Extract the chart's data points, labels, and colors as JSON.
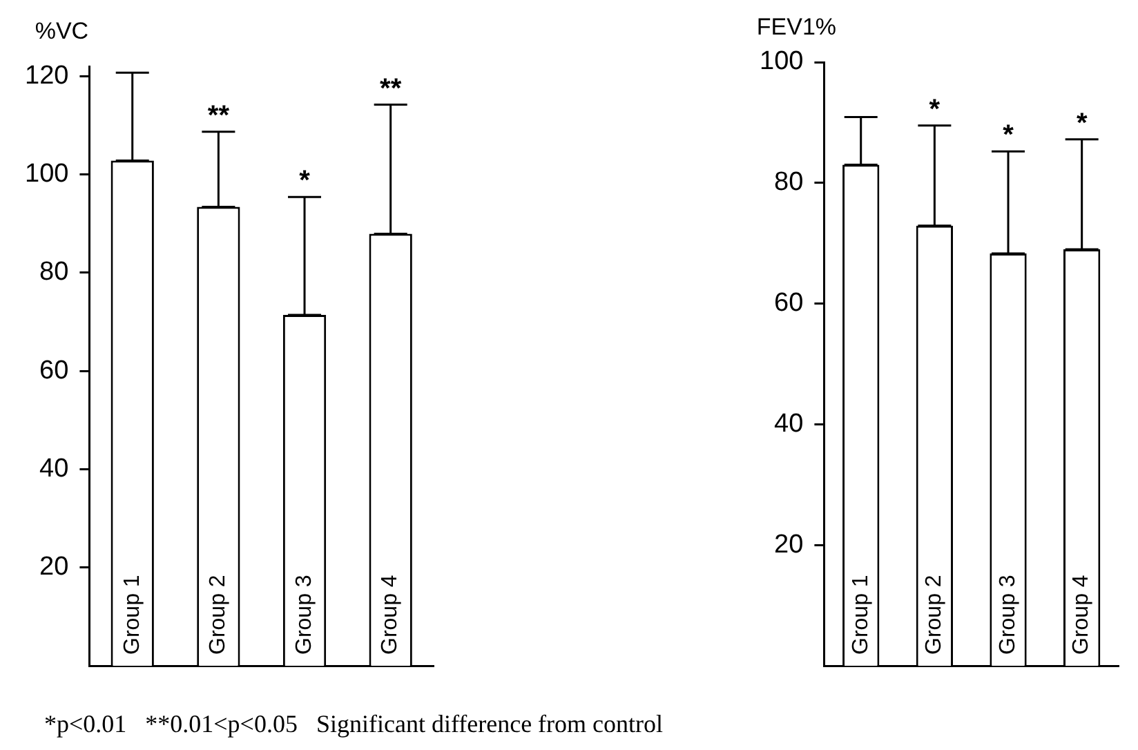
{
  "chart_data": [
    {
      "type": "bar",
      "ylabel": "%VC",
      "categories": [
        "Group 1",
        "Group 2",
        "Group 3",
        "Group 4"
      ],
      "values": [
        102.8,
        93.4,
        71.4,
        87.9
      ],
      "color": "#ffffff",
      "errors": [
        [
          102.8,
          120.7
        ],
        [
          93.4,
          108.7
        ],
        [
          71.4,
          95.4
        ],
        [
          87.9,
          114.2
        ]
      ],
      "ylim": [
        0,
        122
      ],
      "yticks": [
        20,
        40,
        60,
        80,
        100,
        120
      ],
      "annotations": [
        {
          "text": "**",
          "x": "Group 2",
          "y": 108.7
        },
        {
          "text": "*",
          "x": "Group 3",
          "y": 95.4
        },
        {
          "text": "**",
          "x": "Group 4",
          "y": 114.2
        },
        "*p<0.01   **0.01<p<0.05   Significant difference from control"
      ]
    },
    {
      "type": "bar",
      "ylabel": "FEV1%",
      "categories": [
        "Group 1",
        "Group 2",
        "Group 3",
        "Group 4"
      ],
      "values": [
        83.0,
        72.9,
        68.3,
        69.0
      ],
      "color": "#ffffff",
      "errors": [
        [
          83.0,
          90.9
        ],
        [
          72.9,
          89.5
        ],
        [
          68.3,
          85.2
        ],
        [
          69.0,
          87.2
        ]
      ],
      "ylim": [
        0,
        100
      ],
      "yticks": [
        20,
        40,
        60,
        80,
        100
      ],
      "annotations": [
        {
          "text": "*",
          "x": "Group 2",
          "y": 89.5
        },
        {
          "text": "*",
          "x": "Group 3",
          "y": 85.2
        },
        {
          "text": "*",
          "x": "Group 4",
          "y": 87.2
        }
      ]
    }
  ]
}
